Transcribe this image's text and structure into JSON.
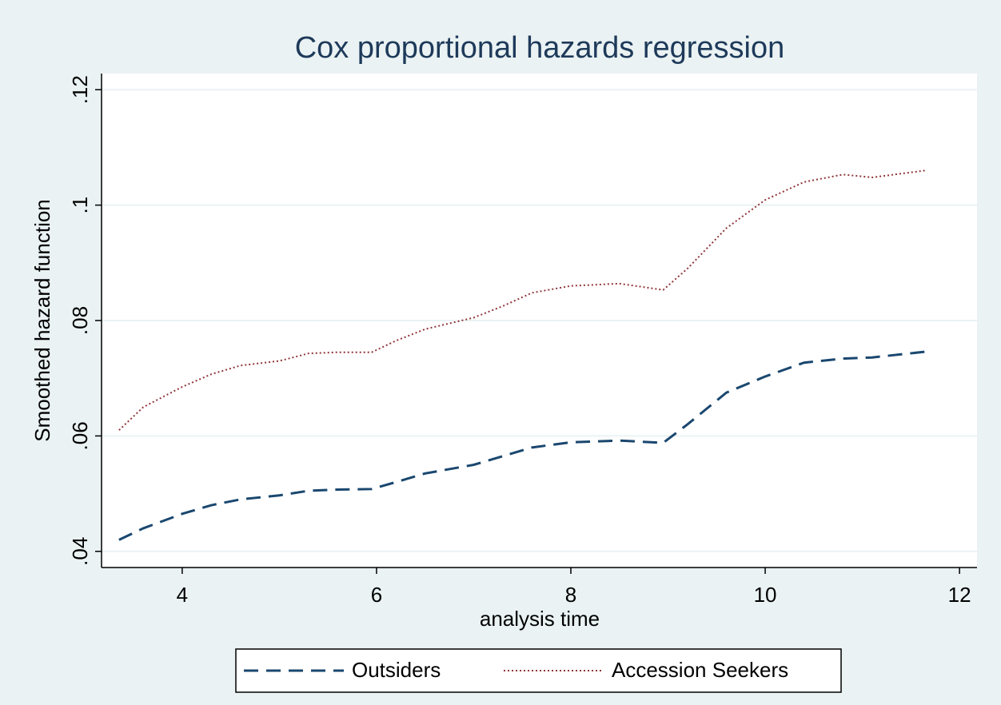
{
  "chart_data": {
    "type": "line",
    "title": "Cox proportional hazards regression",
    "x_label": "analysis time",
    "y_label": "Smoothed hazard function",
    "xlim": [
      3.17,
      12.18
    ],
    "xticks": [
      4,
      6,
      8,
      10,
      12
    ],
    "ylim": [
      0.0372,
      0.1228
    ],
    "yticks": [
      {
        "value": 0.12,
        "label": ".12"
      },
      {
        "value": 0.1,
        "label": ".1"
      },
      {
        "value": 0.08,
        "label": ".08"
      },
      {
        "value": 0.06,
        "label": ".06"
      },
      {
        "value": 0.04,
        "label": ".04"
      }
    ],
    "grid": true,
    "legend_position": "bottom",
    "x": [
      3.35,
      3.6,
      4.0,
      4.3,
      4.6,
      5.0,
      5.3,
      5.6,
      5.95,
      6.2,
      6.5,
      7.0,
      7.3,
      7.6,
      8.0,
      8.5,
      8.95,
      9.2,
      9.6,
      10.0,
      10.4,
      10.8,
      11.1,
      11.65
    ],
    "series": [
      {
        "name": "Outsiders",
        "color": "#1a476f",
        "dash": "dashed",
        "values": [
          0.042,
          0.044,
          0.0465,
          0.048,
          0.049,
          0.0497,
          0.0505,
          0.0507,
          0.0508,
          0.052,
          0.0535,
          0.055,
          0.0565,
          0.058,
          0.0589,
          0.0592,
          0.0588,
          0.062,
          0.0675,
          0.0703,
          0.0727,
          0.0734,
          0.0736,
          0.0746
        ]
      },
      {
        "name": "Accession Seekers",
        "color": "#90353b",
        "dash": "dotted",
        "values": [
          0.061,
          0.065,
          0.0685,
          0.0707,
          0.0722,
          0.073,
          0.0743,
          0.0745,
          0.0745,
          0.0765,
          0.0785,
          0.0805,
          0.0825,
          0.0848,
          0.086,
          0.0864,
          0.0853,
          0.089,
          0.096,
          0.1009,
          0.104,
          0.1053,
          0.1048,
          0.106
        ]
      }
    ]
  }
}
